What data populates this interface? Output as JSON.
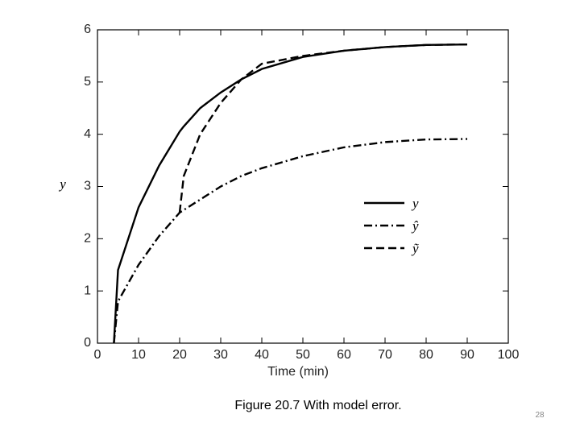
{
  "chart_data": {
    "type": "line",
    "x_label": "Time (min)",
    "y_label": "y",
    "caption": "Figure 20.7 With model error.",
    "page_number": "28",
    "x": [
      4,
      5,
      10,
      15,
      20,
      21,
      25,
      30,
      35,
      40,
      50,
      60,
      70,
      80,
      90
    ],
    "series": [
      {
        "name": "y",
        "color": "#000000",
        "dash": "solid",
        "values": [
          0,
          1.4,
          2.6,
          3.4,
          4.05,
          4.15,
          4.5,
          4.8,
          5.05,
          5.25,
          5.48,
          5.6,
          5.67,
          5.71,
          5.72
        ]
      },
      {
        "name": "ŷ",
        "color": "#000000",
        "dash": "dashdot",
        "values": [
          0,
          0.8,
          1.5,
          2.05,
          2.5,
          2.55,
          2.75,
          3.0,
          3.2,
          3.35,
          3.58,
          3.75,
          3.85,
          3.9,
          3.91
        ]
      },
      {
        "name": "ỹ",
        "color": "#000000",
        "dash": "dashed",
        "values": [
          null,
          null,
          null,
          null,
          2.5,
          3.2,
          4.0,
          4.6,
          5.05,
          5.35,
          5.5,
          5.6,
          5.67,
          5.71,
          5.72
        ]
      }
    ],
    "xlim": [
      0,
      100
    ],
    "xticks": [
      0,
      10,
      20,
      30,
      40,
      50,
      60,
      70,
      80,
      90,
      100
    ],
    "ylim": [
      0,
      6
    ],
    "yticks": [
      0,
      1,
      2,
      3,
      4,
      5,
      6
    ]
  }
}
